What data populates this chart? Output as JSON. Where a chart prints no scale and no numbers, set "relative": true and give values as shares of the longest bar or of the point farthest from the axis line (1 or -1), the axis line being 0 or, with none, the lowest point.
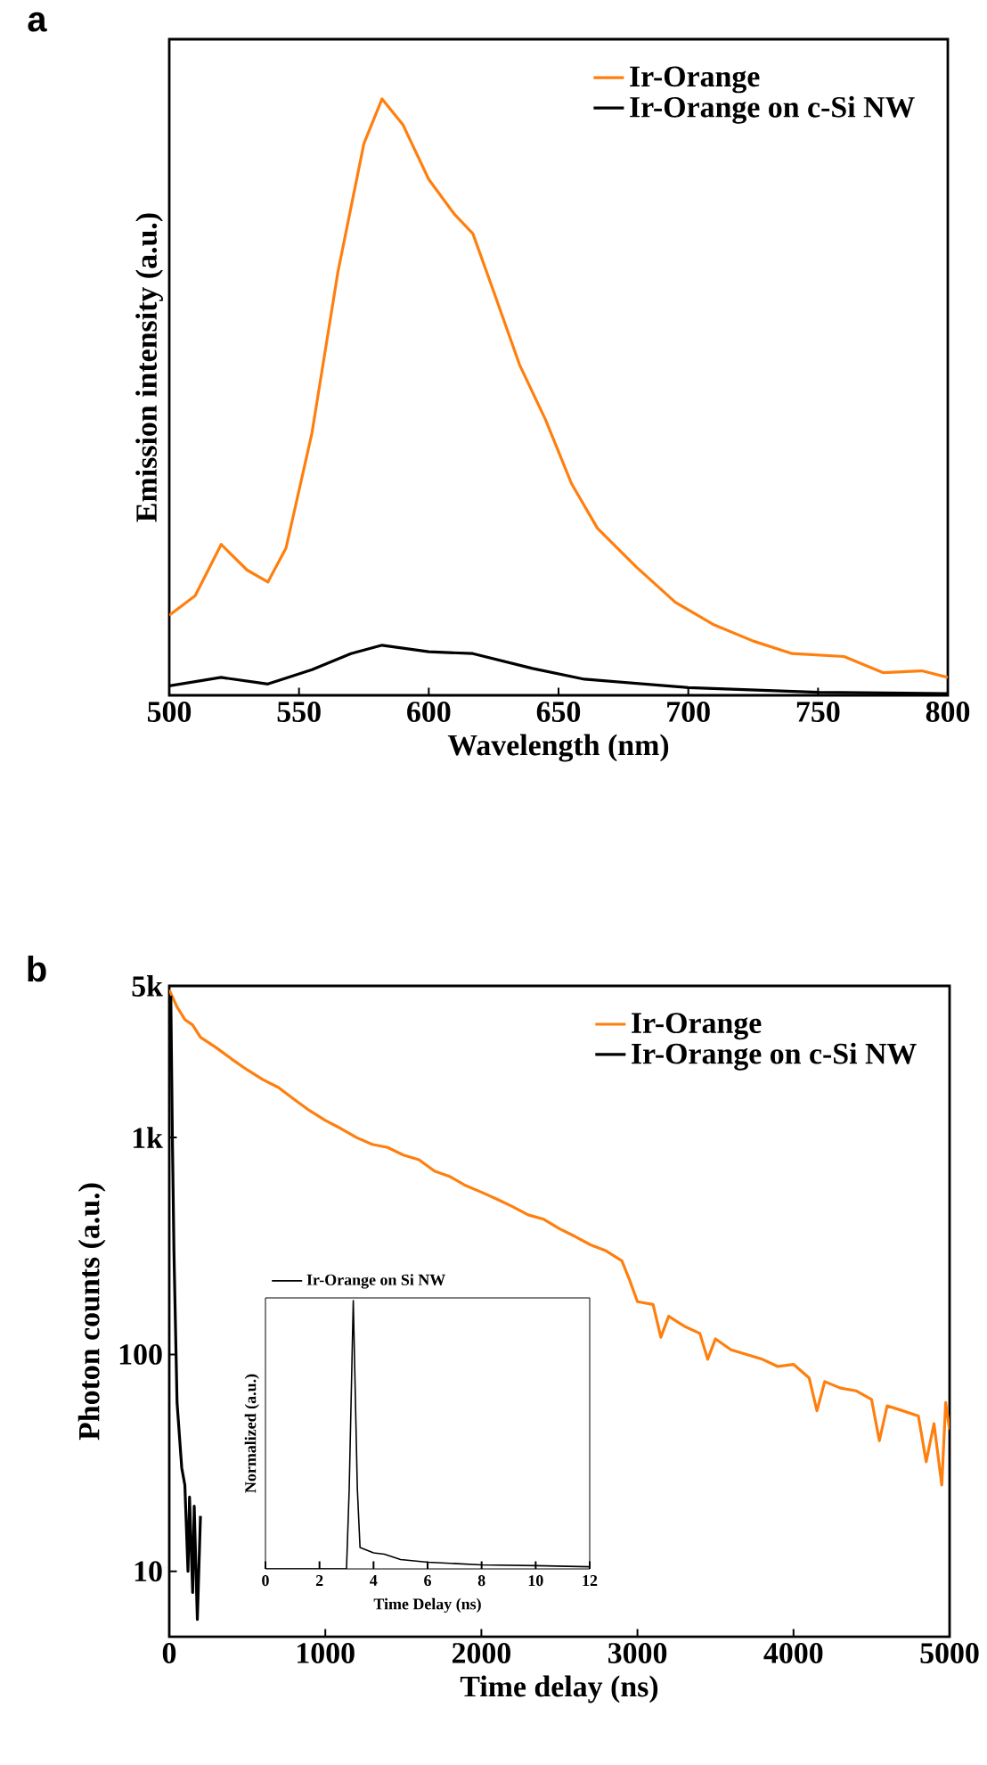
{
  "chart_data": [
    {
      "type": "line",
      "title": "a",
      "xlabel": "Wavelength (nm)",
      "ylabel": "Emission intensity (a.u.)",
      "relative": true,
      "xlim": [
        500,
        800
      ],
      "xticks": [
        500,
        550,
        600,
        650,
        700,
        750,
        800
      ],
      "legend": "top right",
      "series": [
        {
          "name": "Ir-Orange",
          "color": "#ff7f0e",
          "x": [
            500,
            510,
            520,
            530,
            538,
            545,
            555,
            565,
            575,
            582,
            590,
            600,
            610,
            617,
            625,
            635,
            645,
            655,
            665,
            680,
            695,
            710,
            725,
            740,
            760,
            775,
            790,
            800
          ],
          "values": [
            0.134,
            0.167,
            0.253,
            0.21,
            0.19,
            0.247,
            0.44,
            0.71,
            0.925,
            1.0,
            0.957,
            0.865,
            0.806,
            0.774,
            0.677,
            0.554,
            0.462,
            0.355,
            0.28,
            0.215,
            0.156,
            0.118,
            0.091,
            0.07,
            0.065,
            0.038,
            0.041,
            0.03
          ]
        },
        {
          "name": "Ir-Orange on c-Si NW",
          "color": "#000000",
          "x": [
            500,
            520,
            538,
            555,
            570,
            582,
            600,
            617,
            640,
            660,
            700,
            750,
            800
          ],
          "values": [
            0.016,
            0.03,
            0.019,
            0.043,
            0.07,
            0.084,
            0.073,
            0.07,
            0.045,
            0.027,
            0.013,
            0.005,
            0.003
          ]
        }
      ]
    },
    {
      "type": "line",
      "title": "b",
      "xlabel": "Time delay (ns)",
      "ylabel": "Photon counts (a.u.)",
      "log": true,
      "xlim": [
        0,
        5000
      ],
      "xticks": [
        0,
        1000,
        2000,
        3000,
        4000,
        5000
      ],
      "ylim": [
        5,
        5000
      ],
      "yticks": [
        10,
        100,
        {
          "value": 1000,
          "label": "1k"
        },
        {
          "value": 5000,
          "label": "5k"
        }
      ],
      "legend": "top right",
      "series": [
        {
          "name": "Ir-Orange",
          "color": "#ff7f0e",
          "x": [
            0,
            50,
            100,
            150,
            200,
            300,
            400,
            500,
            600,
            700,
            800,
            900,
            1000,
            1100,
            1200,
            1300,
            1400,
            1500,
            1600,
            1700,
            1800,
            1900,
            2000,
            2100,
            2200,
            2300,
            2400,
            2500,
            2600,
            2700,
            2800,
            2900,
            2950,
            3000,
            3100,
            3150,
            3200,
            3300,
            3400,
            3450,
            3500,
            3600,
            3700,
            3800,
            3900,
            4000,
            4100,
            4150,
            4200,
            4300,
            4400,
            4500,
            4550,
            4600,
            4700,
            4800,
            4850,
            4900,
            4950,
            4975,
            5000
          ],
          "values": [
            4800,
            4000,
            3500,
            3300,
            2900,
            2600,
            2300,
            2050,
            1850,
            1700,
            1500,
            1330,
            1200,
            1100,
            1000,
            930,
            900,
            830,
            790,
            700,
            660,
            600,
            560,
            520,
            480,
            440,
            420,
            380,
            350,
            320,
            300,
            270,
            220,
            175,
            170,
            120,
            150,
            135,
            125,
            95,
            118,
            105,
            100,
            95,
            88,
            90,
            78,
            55,
            75,
            70,
            68,
            62,
            40,
            58,
            55,
            52,
            32,
            48,
            25,
            60,
            45
          ]
        },
        {
          "name": "Ir-Orange on c-Si NW",
          "color": "#000000",
          "x": [
            10,
            20,
            30,
            50,
            80,
            100,
            120,
            130,
            150,
            160,
            180,
            200
          ],
          "values": [
            4500,
            1000,
            300,
            60,
            30,
            25,
            10,
            22,
            8,
            20,
            6,
            18
          ]
        }
      ]
    },
    {
      "type": "line",
      "xlabel": "Time Delay (ns)",
      "ylabel": "Normalized (a.u.)",
      "relative": true,
      "xlim": [
        0,
        12
      ],
      "xticks": [
        0,
        2,
        4,
        6,
        8,
        10,
        12
      ],
      "legend": "top",
      "series": [
        {
          "name": "Ir-Orange on Si NW",
          "color": "#000000",
          "x": [
            0,
            3.0,
            3.1,
            3.25,
            3.4,
            3.5,
            4.0,
            4.4,
            5,
            6,
            8,
            10,
            12
          ],
          "values": [
            0,
            0,
            0.3,
            1.0,
            0.3,
            0.08,
            0.06,
            0.055,
            0.035,
            0.025,
            0.015,
            0.012,
            0.008
          ]
        }
      ]
    }
  ]
}
